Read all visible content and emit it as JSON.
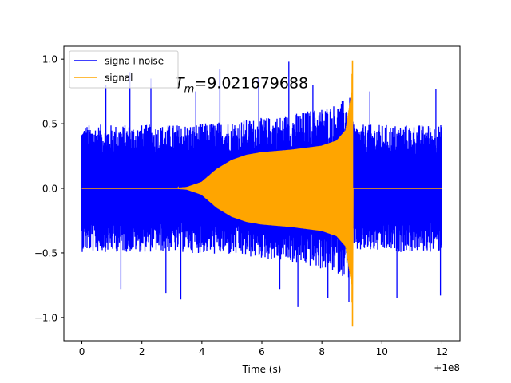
{
  "chart_data": {
    "type": "line",
    "title": "",
    "xlabel": "Time (s)",
    "ylabel": "",
    "x_offset_label": "+1e8",
    "xlim": [
      -0.6,
      12.6
    ],
    "ylim": [
      -1.18,
      1.1
    ],
    "x_ticks": [
      {
        "value": 0,
        "label": "0"
      },
      {
        "value": 2,
        "label": "2"
      },
      {
        "value": 4,
        "label": "4"
      },
      {
        "value": 6,
        "label": "6"
      },
      {
        "value": 8,
        "label": "8"
      },
      {
        "value": 10,
        "label": "10"
      },
      {
        "value": 12,
        "label": "12"
      }
    ],
    "y_ticks": [
      {
        "value": 1.0,
        "label": "1.0"
      },
      {
        "value": 0.5,
        "label": "0.5"
      },
      {
        "value": 0.0,
        "label": "0.0"
      },
      {
        "value": -0.5,
        "label": "−0.5"
      },
      {
        "value": -1.0,
        "label": "−1.0"
      }
    ],
    "grid": false,
    "legend_position": "top-left",
    "annotation": {
      "text_main": "T",
      "text_sub": "m",
      "text_value": "=9.021679688",
      "x": 3.1,
      "y": 0.82
    },
    "series": [
      {
        "name": "signa+noise",
        "color": "#0000ff",
        "x_range": [
          0,
          12
        ],
        "envelope": {
          "x": [
            0,
            1,
            2,
            3,
            4,
            5,
            6,
            7,
            8,
            8.5,
            9.02,
            9.05,
            10,
            11,
            12
          ],
          "typical_abs": [
            0.47,
            0.47,
            0.47,
            0.47,
            0.48,
            0.5,
            0.52,
            0.55,
            0.6,
            0.63,
            0.68,
            0.47,
            0.47,
            0.47,
            0.47
          ]
        },
        "peaks": [
          {
            "x": 0.8,
            "y": 0.8
          },
          {
            "x": 1.3,
            "y": -0.78
          },
          {
            "x": 1.6,
            "y": 0.9
          },
          {
            "x": 2.3,
            "y": 0.85
          },
          {
            "x": 2.8,
            "y": -0.81
          },
          {
            "x": 3.3,
            "y": -0.86
          },
          {
            "x": 3.8,
            "y": 0.75
          },
          {
            "x": 4.6,
            "y": 0.92
          },
          {
            "x": 5.9,
            "y": 0.85
          },
          {
            "x": 6.6,
            "y": -0.78
          },
          {
            "x": 6.9,
            "y": 0.98
          },
          {
            "x": 7.2,
            "y": -0.92
          },
          {
            "x": 7.7,
            "y": 0.8
          },
          {
            "x": 8.2,
            "y": -0.85
          },
          {
            "x": 8.9,
            "y": -0.88
          },
          {
            "x": 9.6,
            "y": 0.75
          },
          {
            "x": 10.5,
            "y": -0.85
          },
          {
            "x": 11.8,
            "y": 0.77
          },
          {
            "x": 11.95,
            "y": -0.83
          }
        ]
      },
      {
        "name": "signal",
        "color": "#ffa500",
        "type": "chirp",
        "merger_time": 9.021679688,
        "x_range": [
          0,
          12
        ],
        "envelope": {
          "x": [
            0,
            2,
            3,
            3.5,
            4,
            4.5,
            5,
            5.5,
            6,
            7,
            8,
            8.5,
            8.8,
            9.0,
            9.02,
            9.03,
            12
          ],
          "amp": [
            0,
            0,
            0.0,
            0.01,
            0.05,
            0.15,
            0.22,
            0.26,
            0.28,
            0.3,
            0.33,
            0.37,
            0.45,
            0.75,
            1.07,
            0,
            0
          ]
        }
      }
    ]
  }
}
